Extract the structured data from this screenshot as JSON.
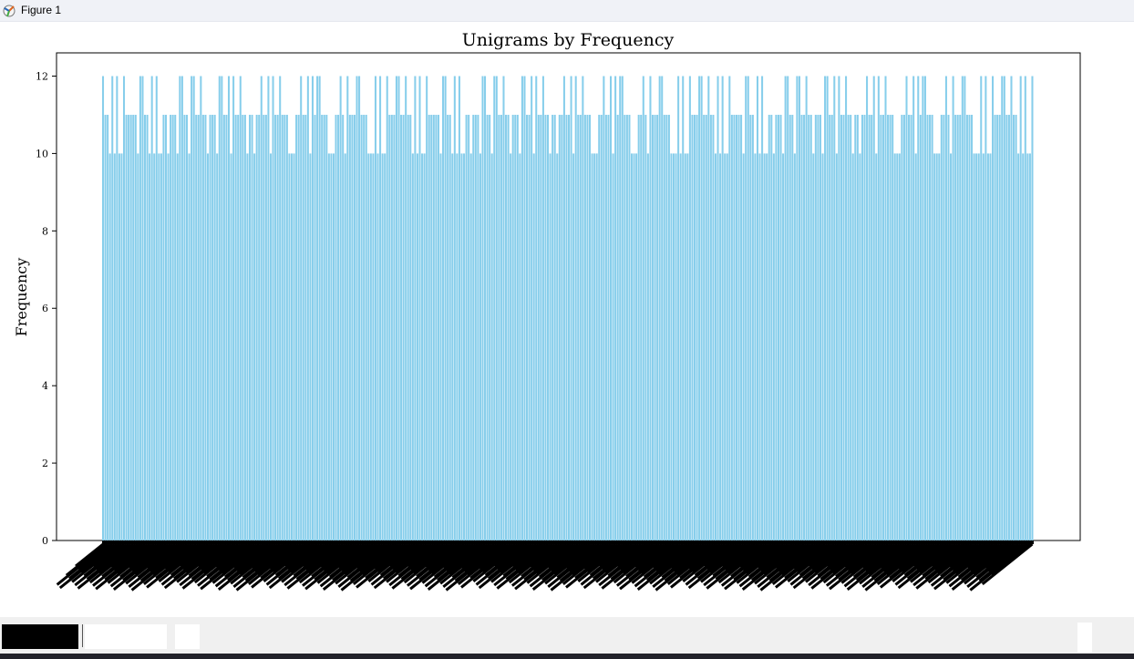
{
  "window": {
    "title": "Figure 1",
    "icon": "matplotlib-figure-icon"
  },
  "toolbar": {
    "buttons": [
      "home-icon",
      "pan-icon",
      "zoom-icon",
      "save-icon"
    ]
  },
  "chart_data": {
    "type": "bar",
    "title": "Unigrams by Frequency",
    "xlabel": "",
    "ylabel": "Frequency",
    "ylim": [
      0,
      12.6
    ],
    "yticks": [
      0,
      2,
      4,
      6,
      8,
      10,
      12
    ],
    "bar_color": "#87ceeb",
    "grid": false,
    "n_bars": 400,
    "values_note": "Approximately 400 unigram bars with frequency 10, 11 or 12; category tick labels are overlapping and illegible (rendered as black rotated text).",
    "value_levels": [
      12,
      11,
      10
    ],
    "sample_pattern": [
      12,
      12,
      12,
      11,
      11,
      11,
      10,
      11,
      11,
      10,
      11,
      12,
      11,
      10,
      11,
      11,
      10,
      12,
      12,
      11,
      10,
      10,
      12,
      12,
      11,
      11,
      10,
      11,
      12,
      10,
      11,
      11,
      11,
      12,
      11,
      10,
      12,
      11,
      10,
      11
    ]
  }
}
